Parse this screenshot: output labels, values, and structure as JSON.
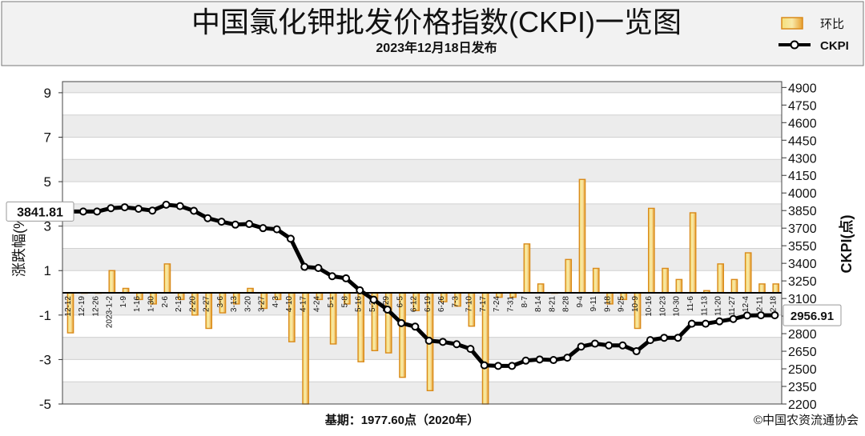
{
  "chart_data": {
    "type": "bar+line",
    "title": "中国氯化钾批发价格指数(CKPI)一览图",
    "subtitle": "2023年12月18日发布",
    "left_axis_label": "涨跌幅(%)",
    "right_axis_label": "CKPI(点)",
    "footer_base": "基期：1977.60点（2020年）",
    "copyright": "©中国农资流通协会",
    "legend": {
      "bar": "环比",
      "line": "CKPI"
    },
    "left_axis": {
      "min": -5,
      "max": 9.5,
      "ticks": [
        9,
        7,
        5,
        3,
        1,
        -1,
        -3,
        -5
      ]
    },
    "right_axis": {
      "min": 2200,
      "max": 4950,
      "ticks": [
        4900,
        4750,
        4600,
        4450,
        4300,
        4150,
        4000,
        3850,
        3700,
        3550,
        3400,
        3250,
        3100,
        2950,
        2800,
        2650,
        2500,
        2350,
        2200
      ]
    },
    "categories": [
      "12-12",
      "12-19",
      "12-26",
      "2023-1-2",
      "1-9",
      "1-16",
      "1-30",
      "2-6",
      "2-13",
      "2-20",
      "2-27",
      "3-6",
      "3-13",
      "3-20",
      "3-27",
      "4-3",
      "4-10",
      "4-17",
      "4-24",
      "5-1",
      "5-8",
      "5-16",
      "5-22",
      "5-29",
      "6-5",
      "6-12",
      "6-19",
      "6-26",
      "7-3",
      "7-10",
      "7-17",
      "7-24",
      "7-31",
      "8-7",
      "8-14",
      "8-21",
      "8-28",
      "9-4",
      "9-11",
      "9-18",
      "9-25",
      "10-9",
      "10-16",
      "10-23",
      "10-30",
      "11-6",
      "11-13",
      "11-20",
      "11-27",
      "12-4",
      "12-11",
      "12-18"
    ],
    "series": [
      {
        "name": "环比",
        "type": "bar",
        "values": [
          -1.8,
          0.0,
          0.0,
          1.0,
          0.2,
          -0.3,
          -0.5,
          1.3,
          -0.3,
          -1.0,
          -1.6,
          -0.9,
          -0.5,
          0.2,
          -0.7,
          -0.3,
          -2.2,
          -5.0,
          -0.3,
          -2.3,
          -0.5,
          -3.1,
          -2.6,
          -2.7,
          -3.8,
          -0.8,
          -4.4,
          -0.4,
          -0.6,
          -1.5,
          -5.0,
          -0.2,
          -0.2,
          2.2,
          0.4,
          0.0,
          1.5,
          5.1,
          1.1,
          -0.5,
          -0.3,
          -1.6,
          3.8,
          1.1,
          0.6,
          3.6,
          0.1,
          1.3,
          0.6,
          1.8,
          0.4,
          0.4
        ]
      },
      {
        "name": "CKPI",
        "type": "line",
        "values": [
          3841.81,
          3841.81,
          3841.81,
          3870,
          3878,
          3865,
          3850,
          3900,
          3888,
          3848,
          3785,
          3755,
          3730,
          3735,
          3700,
          3690,
          3610,
          3370,
          3360,
          3290,
          3272,
          3170,
          3090,
          3005,
          2890,
          2860,
          2740,
          2730,
          2710,
          2670,
          2530,
          2525,
          2525,
          2570,
          2580,
          2575,
          2595,
          2690,
          2715,
          2700,
          2700,
          2650,
          2745,
          2765,
          2765,
          2885,
          2885,
          2905,
          2925,
          2955,
          2956.91,
          2956.91
        ]
      }
    ],
    "annotations": {
      "first_value": "3841.81",
      "last_value": "2956.91"
    },
    "grid": "horizontal",
    "legend_position": "top-right"
  }
}
